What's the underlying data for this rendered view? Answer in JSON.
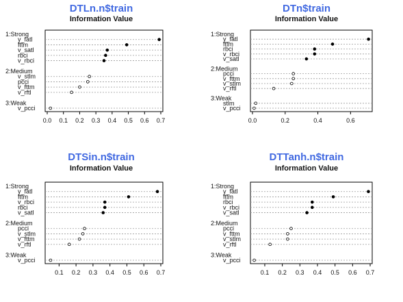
{
  "chart_data": [
    {
      "type": "scatter",
      "title": "DTLn.n$train",
      "subtitle": "Information Value",
      "xlim": [
        0,
        0.7
      ],
      "xticks": [
        "0.0",
        "0.1",
        "0.2",
        "0.3",
        "0.4",
        "0.5",
        "0.6",
        "0.7"
      ],
      "groups": [
        {
          "label": "1:Strong",
          "items": [
            {
              "label": "y_fatl",
              "value": 0.69
            },
            {
              "label": "fttm",
              "value": 0.49
            },
            {
              "label": "v_satl",
              "value": 0.37
            },
            {
              "label": "rbci",
              "value": 0.36
            },
            {
              "label": "v_rbci",
              "value": 0.35
            }
          ]
        },
        {
          "label": "2:Medium",
          "items": [
            {
              "label": "v_stlm",
              "value": 0.26
            },
            {
              "label": "pcci",
              "value": 0.25
            },
            {
              "label": "v_fttm",
              "value": 0.2
            },
            {
              "label": "v_rftl",
              "value": 0.15
            }
          ]
        },
        {
          "label": "3:Weak",
          "items": [
            {
              "label": "v_pcci",
              "value": 0.02
            }
          ]
        }
      ]
    },
    {
      "type": "scatter",
      "title": "DTn$train",
      "subtitle": "Information Value",
      "xlim": [
        0,
        0.72
      ],
      "xticks": [
        "0.0",
        "0.2",
        "0.4",
        "0.6"
      ],
      "groups": [
        {
          "label": "1:Strong",
          "items": [
            {
              "label": "y_fatl",
              "value": 0.71
            },
            {
              "label": "fttm",
              "value": 0.49
            },
            {
              "label": "rbci",
              "value": 0.38
            },
            {
              "label": "v_rbci",
              "value": 0.38
            },
            {
              "label": "v_satl",
              "value": 0.33
            }
          ]
        },
        {
          "label": "2:Medium",
          "items": [
            {
              "label": "pcci",
              "value": 0.25
            },
            {
              "label": "v_fttm",
              "value": 0.25
            },
            {
              "label": "v_stlm",
              "value": 0.24
            },
            {
              "label": "v_rftl",
              "value": 0.13
            }
          ]
        },
        {
          "label": "3:Weak",
          "items": [
            {
              "label": "stlm",
              "value": 0.02
            },
            {
              "label": "v_pcci",
              "value": 0.01
            }
          ]
        }
      ]
    },
    {
      "type": "scatter",
      "title": "DTSin.n$train",
      "subtitle": "Information Value",
      "xlim": [
        0.03,
        0.7
      ],
      "xticks": [
        "0.1",
        "0.2",
        "0.3",
        "0.4",
        "0.5",
        "0.6",
        "0.7"
      ],
      "groups": [
        {
          "label": "1:Strong",
          "items": [
            {
              "label": "y_fatl",
              "value": 0.68
            },
            {
              "label": "fttm",
              "value": 0.51
            },
            {
              "label": "v_rbci",
              "value": 0.37
            },
            {
              "label": "rbci",
              "value": 0.37
            },
            {
              "label": "v_satl",
              "value": 0.36
            }
          ]
        },
        {
          "label": "2:Medium",
          "items": [
            {
              "label": "pcci",
              "value": 0.25
            },
            {
              "label": "v_stlm",
              "value": 0.24
            },
            {
              "label": "v_fttm",
              "value": 0.22
            },
            {
              "label": "v_rftl",
              "value": 0.16
            }
          ]
        },
        {
          "label": "3:Weak",
          "items": [
            {
              "label": "v_pcci",
              "value": 0.05
            }
          ]
        }
      ]
    },
    {
      "type": "scatter",
      "title": "DTTanh.n$train",
      "subtitle": "Information Value",
      "xlim": [
        0.03,
        0.7
      ],
      "xticks": [
        "0.1",
        "0.2",
        "0.3",
        "0.4",
        "0.5",
        "0.6",
        "0.7"
      ],
      "groups": [
        {
          "label": "1:Strong",
          "items": [
            {
              "label": "y_fatl",
              "value": 0.69
            },
            {
              "label": "fttm",
              "value": 0.49
            },
            {
              "label": "rbci",
              "value": 0.37
            },
            {
              "label": "v_rbci",
              "value": 0.37
            },
            {
              "label": "v_satl",
              "value": 0.34
            }
          ]
        },
        {
          "label": "2:Medium",
          "items": [
            {
              "label": "pcci",
              "value": 0.25
            },
            {
              "label": "v_fttm",
              "value": 0.23
            },
            {
              "label": "v_stlm",
              "value": 0.23
            },
            {
              "label": "v_rftl",
              "value": 0.13
            }
          ]
        },
        {
          "label": "3:Weak",
          "items": [
            {
              "label": "v_pcci",
              "value": 0.04
            }
          ]
        }
      ]
    }
  ]
}
